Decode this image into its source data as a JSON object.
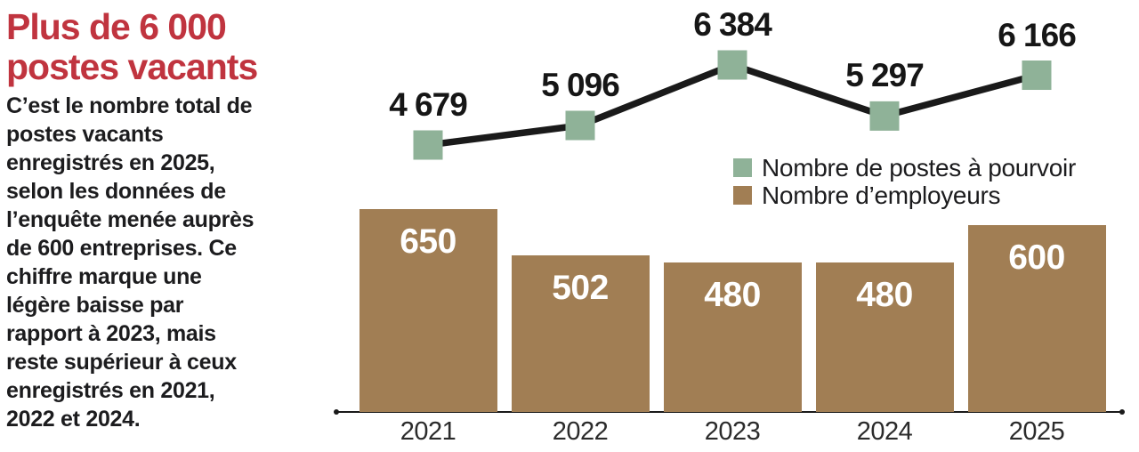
{
  "panel": {
    "headline": "Plus de 6 000\npostes vacants",
    "body": "C’est le nombre total de\npostes vacants\nenregistrés en 2025,\nselon les données de\nl’enquête menée auprès\nde 600 entreprises. Ce\nchiffre marque une\nlégère baisse par\nrapport à 2023, mais\nreste supérieur à ceux\nenregistrés en 2021,\n2022 et 2024."
  },
  "colors": {
    "headline_red": "#c0343f",
    "body_text": "#1c1c1e",
    "line_stroke": "#1a1a1a",
    "marker_green": "#8fb298",
    "bar_brown": "#a17e54",
    "bar_label_white": "#ffffff",
    "axis": "#1a1a1a",
    "tick_label": "#2b2b2b",
    "value_label": "#161616",
    "background": "#ffffff"
  },
  "chart_data": {
    "type": "line+bar",
    "categories": [
      "2021",
      "2022",
      "2023",
      "2024",
      "2025"
    ],
    "series": [
      {
        "name": "Nombre de postes à pourvoir",
        "type": "line",
        "marker": "square",
        "color": "#8fb298",
        "values": [
          4679,
          5096,
          6384,
          5297,
          6166
        ],
        "labels": [
          "4 679",
          "5 096",
          "6 384",
          "5 297",
          "6 166"
        ]
      },
      {
        "name": "Nombre d’employeurs",
        "type": "bar",
        "color": "#a17e54",
        "values": [
          650,
          502,
          480,
          480,
          600
        ],
        "labels": [
          "650",
          "502",
          "480",
          "480",
          "600"
        ]
      }
    ],
    "xlabel": "",
    "ylabel": "",
    "grid": false,
    "legend_position": "center-right",
    "axes": "x-only"
  }
}
